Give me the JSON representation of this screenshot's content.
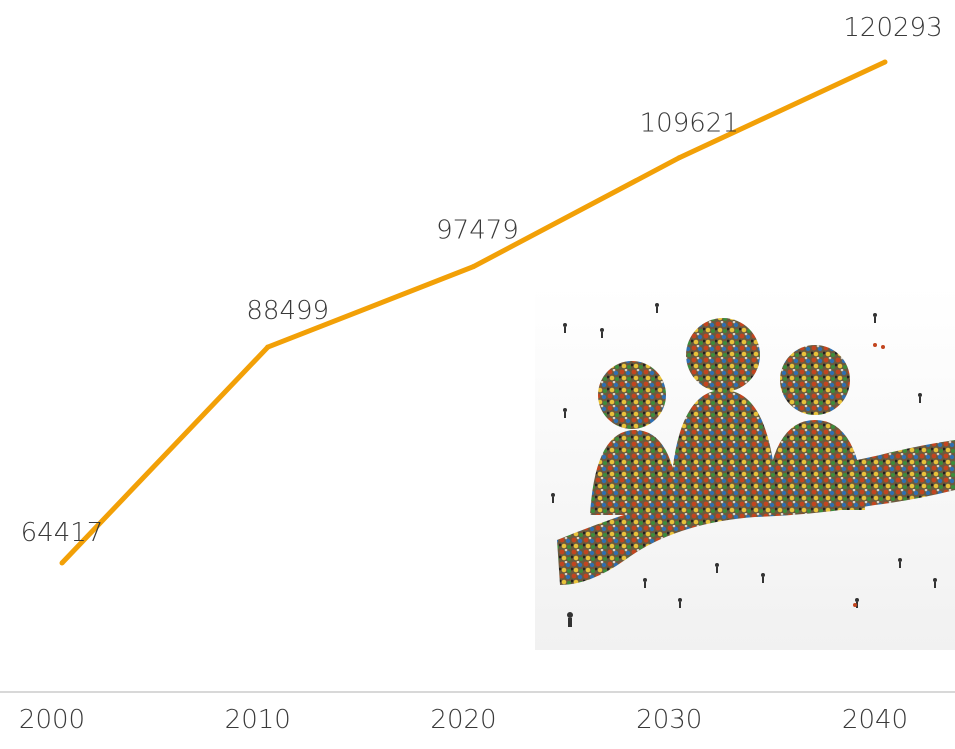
{
  "chart_data": {
    "type": "line",
    "categories": [
      "2000",
      "2010",
      "2020",
      "2030",
      "2040"
    ],
    "series": [
      {
        "values": [
          64417,
          88499,
          97479,
          109621,
          120293
        ]
      }
    ],
    "title": "",
    "xlabel": "",
    "ylabel": "",
    "grid": false,
    "legend": "none",
    "line_color": "#f2a007",
    "axis_color": "#cccccc"
  },
  "decoration": {
    "icon": "crowd-forming-people-icon"
  }
}
